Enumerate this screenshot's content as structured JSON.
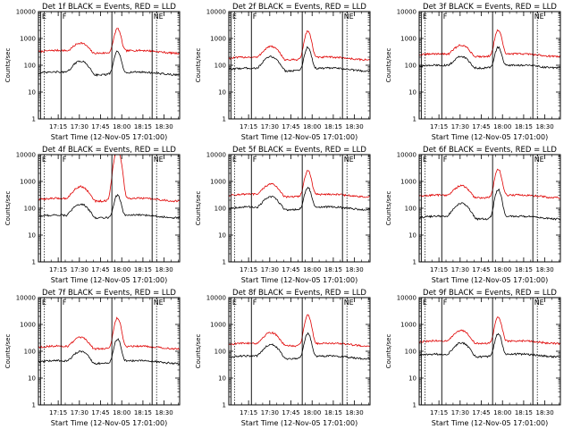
{
  "figure": {
    "colors": {
      "events": "#000000",
      "lld": "#e00000",
      "axis": "#000000",
      "background": "#ffffff"
    }
  },
  "chart_data": [
    {
      "type": "line",
      "title": "Det 1f BLACK = Events, RED = LLD",
      "xlabel": "Start Time (12-Nov-05 17:01:00)",
      "ylabel": "Counts/sec",
      "yscale": "log",
      "ylim": [
        1,
        10000
      ],
      "xlim_minutes": [
        0,
        100
      ],
      "xtick_labels": [
        "17:15",
        "17:30",
        "17:45",
        "18:00",
        "18:15",
        "18:30"
      ],
      "ytick_labels": [
        "1",
        "10",
        "100",
        "1000",
        "10000"
      ],
      "markers": [
        {
          "label": "E",
          "t": 1.5
        },
        {
          "label": "F",
          "t": 16
        },
        {
          "label": "",
          "t": 52
        },
        {
          "label": "NE",
          "t": 80.5
        }
      ],
      "series": [
        {
          "name": "LLD",
          "color": "#e00000",
          "base": 320,
          "hump": 460,
          "peak": 2000
        },
        {
          "name": "Events",
          "color": "#000000",
          "base": 50,
          "hump": 110,
          "peak": 280
        }
      ]
    },
    {
      "type": "line",
      "title": "Det 2f BLACK = Events, RED = LLD",
      "xlabel": "Start Time (12-Nov-05 17:01:00)",
      "ylabel": "Counts/sec",
      "yscale": "log",
      "ylim": [
        1,
        10000
      ],
      "xlim_minutes": [
        0,
        100
      ],
      "xtick_labels": [
        "17:15",
        "17:30",
        "17:45",
        "18:00",
        "18:15",
        "18:30"
      ],
      "ytick_labels": [
        "1",
        "10",
        "100",
        "1000",
        "10000"
      ],
      "markers": [
        {
          "label": "E",
          "t": 1.5
        },
        {
          "label": "F",
          "t": 16
        },
        {
          "label": "",
          "t": 52
        },
        {
          "label": "NE",
          "t": 80.5
        }
      ],
      "series": [
        {
          "name": "LLD",
          "color": "#e00000",
          "base": 180,
          "hump": 380,
          "peak": 1700
        },
        {
          "name": "Events",
          "color": "#000000",
          "base": 70,
          "hump": 160,
          "peak": 400
        }
      ]
    },
    {
      "type": "line",
      "title": "Det 3f BLACK = Events, RED = LLD",
      "xlabel": "Start Time (12-Nov-05 17:01:00)",
      "ylabel": "Counts/sec",
      "yscale": "log",
      "ylim": [
        1,
        10000
      ],
      "xlim_minutes": [
        0,
        100
      ],
      "xtick_labels": [
        "17:15",
        "17:30",
        "17:45",
        "18:00",
        "18:15",
        "18:30"
      ],
      "ytick_labels": [
        "1",
        "10",
        "100",
        "1000",
        "10000"
      ],
      "markers": [
        {
          "label": "E",
          "t": 1.5
        },
        {
          "label": "F",
          "t": 16
        },
        {
          "label": "",
          "t": 52
        },
        {
          "label": "NE",
          "t": 80.5
        }
      ],
      "series": [
        {
          "name": "LLD",
          "color": "#e00000",
          "base": 240,
          "hump": 400,
          "peak": 1800
        },
        {
          "name": "Events",
          "color": "#000000",
          "base": 90,
          "hump": 150,
          "peak": 380
        }
      ]
    },
    {
      "type": "line",
      "title": "Det 4f BLACK = Events, RED = LLD",
      "xlabel": "Start Time (12-Nov-05 17:01:00)",
      "ylabel": "Counts/sec",
      "yscale": "log",
      "ylim": [
        1,
        10000
      ],
      "xlim_minutes": [
        0,
        100
      ],
      "xtick_labels": [
        "17:15",
        "17:30",
        "17:45",
        "18:00",
        "18:15",
        "18:30"
      ],
      "ytick_labels": [
        "1",
        "10",
        "100",
        "1000",
        "10000"
      ],
      "markers": [
        {
          "label": "E",
          "t": 1.5
        },
        {
          "label": "F",
          "t": 16
        },
        {
          "label": "",
          "t": 52
        },
        {
          "label": "NE",
          "t": 80.5
        }
      ],
      "series": [
        {
          "name": "LLD",
          "color": "#e00000",
          "base": 210,
          "hump": 500,
          "peak": 15000
        },
        {
          "name": "Events",
          "color": "#000000",
          "base": 50,
          "hump": 110,
          "peak": 260
        }
      ]
    },
    {
      "type": "line",
      "title": "Det 5f BLACK = Events, RED = LLD",
      "xlabel": "Start Time (12-Nov-05 17:01:00)",
      "ylabel": "Counts/sec",
      "yscale": "log",
      "ylim": [
        1,
        10000
      ],
      "xlim_minutes": [
        0,
        100
      ],
      "xtick_labels": [
        "17:15",
        "17:30",
        "17:45",
        "18:00",
        "18:15",
        "18:30"
      ],
      "ytick_labels": [
        "1",
        "10",
        "100",
        "1000",
        "10000"
      ],
      "markers": [
        {
          "label": "E",
          "t": 1.5
        },
        {
          "label": "F",
          "t": 16
        },
        {
          "label": "",
          "t": 52
        },
        {
          "label": "NE",
          "t": 80.5
        }
      ],
      "series": [
        {
          "name": "LLD",
          "color": "#e00000",
          "base": 300,
          "hump": 600,
          "peak": 2200
        },
        {
          "name": "Events",
          "color": "#000000",
          "base": 100,
          "hump": 200,
          "peak": 500
        }
      ]
    },
    {
      "type": "line",
      "title": "Det 6f BLACK = Events, RED = LLD",
      "xlabel": "Start Time (12-Nov-05 17:01:00)",
      "ylabel": "Counts/sec",
      "yscale": "log",
      "ylim": [
        1,
        10000
      ],
      "xlim_minutes": [
        0,
        100
      ],
      "xtick_labels": [
        "17:15",
        "17:30",
        "17:45",
        "18:00",
        "18:15",
        "18:30"
      ],
      "ytick_labels": [
        "1",
        "10",
        "100",
        "1000",
        "10000"
      ],
      "markers": [
        {
          "label": "E",
          "t": 1.5
        },
        {
          "label": "F",
          "t": 16
        },
        {
          "label": "",
          "t": 52
        },
        {
          "label": "NE",
          "t": 80.5
        }
      ],
      "series": [
        {
          "name": "LLD",
          "color": "#e00000",
          "base": 280,
          "hump": 500,
          "peak": 2500
        },
        {
          "name": "Events",
          "color": "#000000",
          "base": 45,
          "hump": 120,
          "peak": 450
        }
      ]
    },
    {
      "type": "line",
      "title": "Det 7f BLACK = Events, RED = LLD",
      "xlabel": "Start Time (12-Nov-05 17:01:00)",
      "ylabel": "Counts/sec",
      "yscale": "log",
      "ylim": [
        1,
        10000
      ],
      "xlim_minutes": [
        0,
        100
      ],
      "xtick_labels": [
        "17:15",
        "17:30",
        "17:45",
        "18:00",
        "18:15",
        "18:30"
      ],
      "ytick_labels": [
        "1",
        "10",
        "100",
        "1000",
        "10000"
      ],
      "markers": [
        {
          "label": "E",
          "t": 1.5
        },
        {
          "label": "F",
          "t": 16
        },
        {
          "label": "",
          "t": 52
        },
        {
          "label": "NE",
          "t": 80.5
        }
      ],
      "series": [
        {
          "name": "LLD",
          "color": "#e00000",
          "base": 140,
          "hump": 230,
          "peak": 1600
        },
        {
          "name": "Events",
          "color": "#000000",
          "base": 40,
          "hump": 70,
          "peak": 250
        }
      ]
    },
    {
      "type": "line",
      "title": "Det 8f BLACK = Events, RED = LLD",
      "xlabel": "Start Time (12-Nov-05 17:01:00)",
      "ylabel": "Counts/sec",
      "yscale": "log",
      "ylim": [
        1,
        10000
      ],
      "xlim_minutes": [
        0,
        100
      ],
      "xtick_labels": [
        "17:15",
        "17:30",
        "17:45",
        "18:00",
        "18:15",
        "18:30"
      ],
      "ytick_labels": [
        "1",
        "10",
        "100",
        "1000",
        "10000"
      ],
      "markers": [
        {
          "label": "E",
          "t": 1.5
        },
        {
          "label": "F",
          "t": 16
        },
        {
          "label": "",
          "t": 52
        },
        {
          "label": "NE",
          "t": 80.5
        }
      ],
      "series": [
        {
          "name": "LLD",
          "color": "#e00000",
          "base": 180,
          "hump": 380,
          "peak": 2000
        },
        {
          "name": "Events",
          "color": "#000000",
          "base": 60,
          "hump": 140,
          "peak": 400
        }
      ]
    },
    {
      "type": "line",
      "title": "Det 9f BLACK = Events, RED = LLD",
      "xlabel": "Start Time (12-Nov-05 17:01:00)",
      "ylabel": "Counts/sec",
      "yscale": "log",
      "ylim": [
        1,
        10000
      ],
      "xlim_minutes": [
        0,
        100
      ],
      "xtick_labels": [
        "17:15",
        "17:30",
        "17:45",
        "18:00",
        "18:15",
        "18:30"
      ],
      "ytick_labels": [
        "1",
        "10",
        "100",
        "1000",
        "10000"
      ],
      "markers": [
        {
          "label": "E",
          "t": 1.5
        },
        {
          "label": "F",
          "t": 16
        },
        {
          "label": "",
          "t": 52
        },
        {
          "label": "NE",
          "t": 80.5
        }
      ],
      "series": [
        {
          "name": "LLD",
          "color": "#e00000",
          "base": 220,
          "hump": 450,
          "peak": 1600
        },
        {
          "name": "Events",
          "color": "#000000",
          "base": 70,
          "hump": 160,
          "peak": 380
        }
      ]
    }
  ]
}
